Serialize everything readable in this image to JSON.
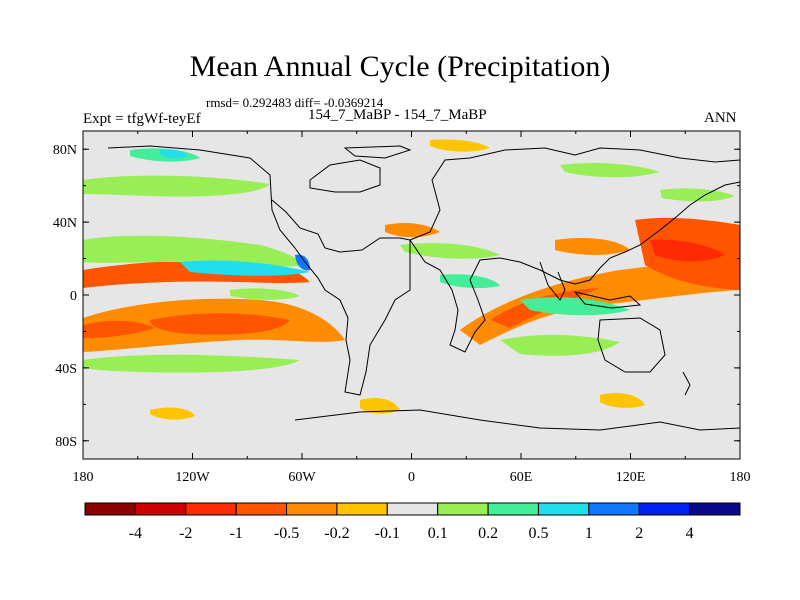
{
  "title": "Mean Annual Cycle (Precipitation)",
  "stats_line": "rmsd= 0.292483 diff= -0.0369214",
  "experiment": "Expt = tfgWf-teyEf",
  "case_label": "154_7_MaBP - 154_7_MaBP",
  "season": "ANN",
  "map": {
    "lat_ticks": [
      "80N",
      "40N",
      "0",
      "40S",
      "80S"
    ],
    "lon_ticks": [
      "180",
      "120W",
      "60W",
      "0",
      "60E",
      "120E",
      "180"
    ]
  },
  "colorbar": {
    "labels": [
      "-4",
      "-2",
      "-1",
      "-0.5",
      "-0.2",
      "-0.1",
      "0.1",
      "0.2",
      "0.5",
      "1",
      "2",
      "4"
    ],
    "colors": [
      "#8b0000",
      "#cc0000",
      "#ff2a00",
      "#ff5500",
      "#ff8c00",
      "#ffc400",
      "#e6e6e6",
      "#99ee55",
      "#44ee99",
      "#22ddee",
      "#1177ff",
      "#0022ee",
      "#0a0a88"
    ]
  }
}
